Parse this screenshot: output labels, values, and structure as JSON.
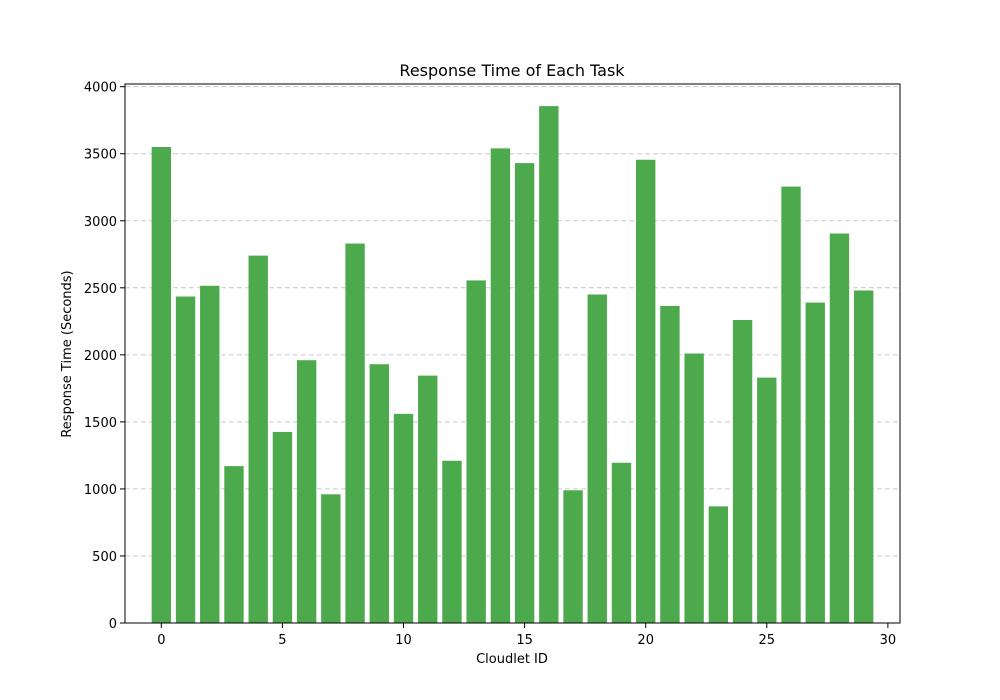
{
  "chart_data": {
    "type": "bar",
    "title": "Response Time of Each Task",
    "xlabel": "Cloudlet ID",
    "ylabel": "Response Time (Seconds)",
    "x": [
      0,
      1,
      2,
      3,
      4,
      5,
      6,
      7,
      8,
      9,
      10,
      11,
      12,
      13,
      14,
      15,
      16,
      17,
      18,
      19,
      20,
      21,
      22,
      23,
      24,
      25,
      26,
      27,
      28,
      29
    ],
    "values": [
      3550,
      2435,
      2515,
      1170,
      2740,
      1425,
      1960,
      960,
      2830,
      1930,
      1560,
      1845,
      1210,
      2555,
      3540,
      3430,
      3855,
      990,
      2450,
      1195,
      3455,
      2365,
      2010,
      870,
      2260,
      1830,
      3255,
      2390,
      2905,
      2480
    ],
    "xlim": [
      -1.5,
      30.5
    ],
    "ylim": [
      0,
      4020
    ],
    "xticks": [
      0,
      5,
      10,
      15,
      20,
      25,
      30
    ],
    "yticks": [
      0,
      500,
      1000,
      1500,
      2000,
      2500,
      3000,
      3500,
      4000
    ],
    "bar_color": "#4caa4c",
    "grid": "y-dashed",
    "legend": "none"
  }
}
